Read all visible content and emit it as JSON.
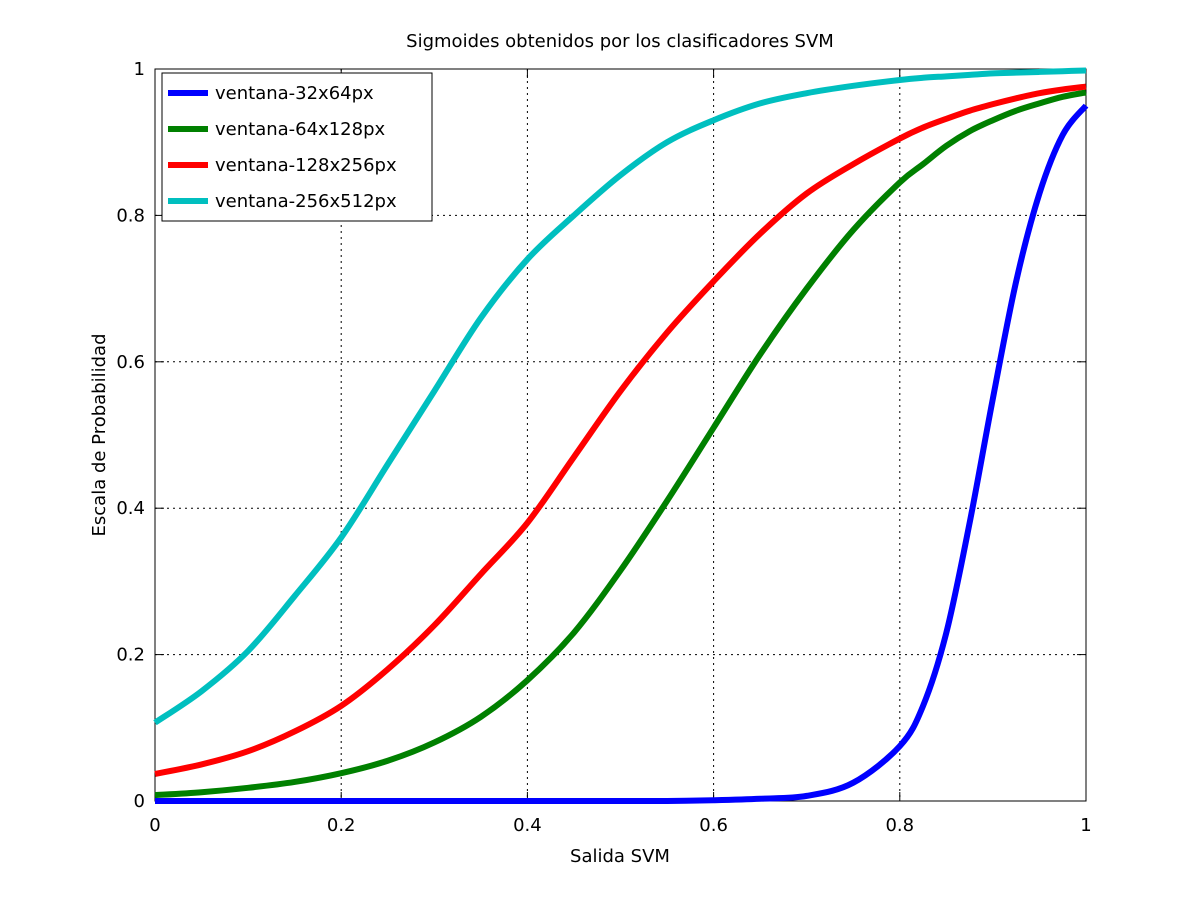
{
  "chart_data": {
    "type": "line",
    "title": "Sigmoides obtenidos por los clasificadores SVM",
    "xlabel": "Salida SVM",
    "ylabel": "Escala de Probabilidad",
    "xlim": [
      0,
      1
    ],
    "ylim": [
      0,
      1
    ],
    "xticks": [
      "0",
      "0.2",
      "0.4",
      "0.6",
      "0.8",
      "1"
    ],
    "yticks": [
      "0",
      "0.2",
      "0.4",
      "0.6",
      "0.8",
      "1"
    ],
    "grid": true,
    "legend_position": "top-left",
    "x": [
      0,
      0.05,
      0.1,
      0.15,
      0.2,
      0.25,
      0.3,
      0.35,
      0.4,
      0.45,
      0.5,
      0.55,
      0.6,
      0.65,
      0.7,
      0.75,
      0.8,
      0.825,
      0.85,
      0.875,
      0.9,
      0.925,
      0.95,
      0.975,
      1
    ],
    "series": [
      {
        "name": "ventana-32x64px",
        "color": "#0000ff",
        "values": [
          0,
          0,
          0,
          0,
          0,
          0,
          0,
          0,
          0,
          0,
          0,
          0,
          0.001,
          0.003,
          0.007,
          0.025,
          0.075,
          0.13,
          0.23,
          0.38,
          0.55,
          0.71,
          0.83,
          0.91,
          0.95
        ]
      },
      {
        "name": "ventana-64x128px",
        "color": "#008000",
        "values": [
          0.008,
          0.012,
          0.018,
          0.026,
          0.038,
          0.055,
          0.08,
          0.115,
          0.165,
          0.23,
          0.315,
          0.41,
          0.51,
          0.61,
          0.7,
          0.78,
          0.845,
          0.87,
          0.895,
          0.915,
          0.93,
          0.943,
          0.953,
          0.962,
          0.968
        ]
      },
      {
        "name": "ventana-128x256px",
        "color": "#ff0000",
        "values": [
          0.037,
          0.05,
          0.068,
          0.095,
          0.13,
          0.18,
          0.24,
          0.31,
          0.38,
          0.47,
          0.56,
          0.64,
          0.71,
          0.775,
          0.83,
          0.87,
          0.905,
          0.92,
          0.932,
          0.943,
          0.952,
          0.96,
          0.967,
          0.972,
          0.976
        ]
      },
      {
        "name": "ventana-256x512px",
        "color": "#00bfbf",
        "values": [
          0.107,
          0.15,
          0.205,
          0.28,
          0.36,
          0.46,
          0.56,
          0.66,
          0.74,
          0.8,
          0.855,
          0.9,
          0.93,
          0.953,
          0.967,
          0.977,
          0.985,
          0.988,
          0.99,
          0.992,
          0.994,
          0.995,
          0.996,
          0.997,
          0.998
        ]
      }
    ]
  }
}
